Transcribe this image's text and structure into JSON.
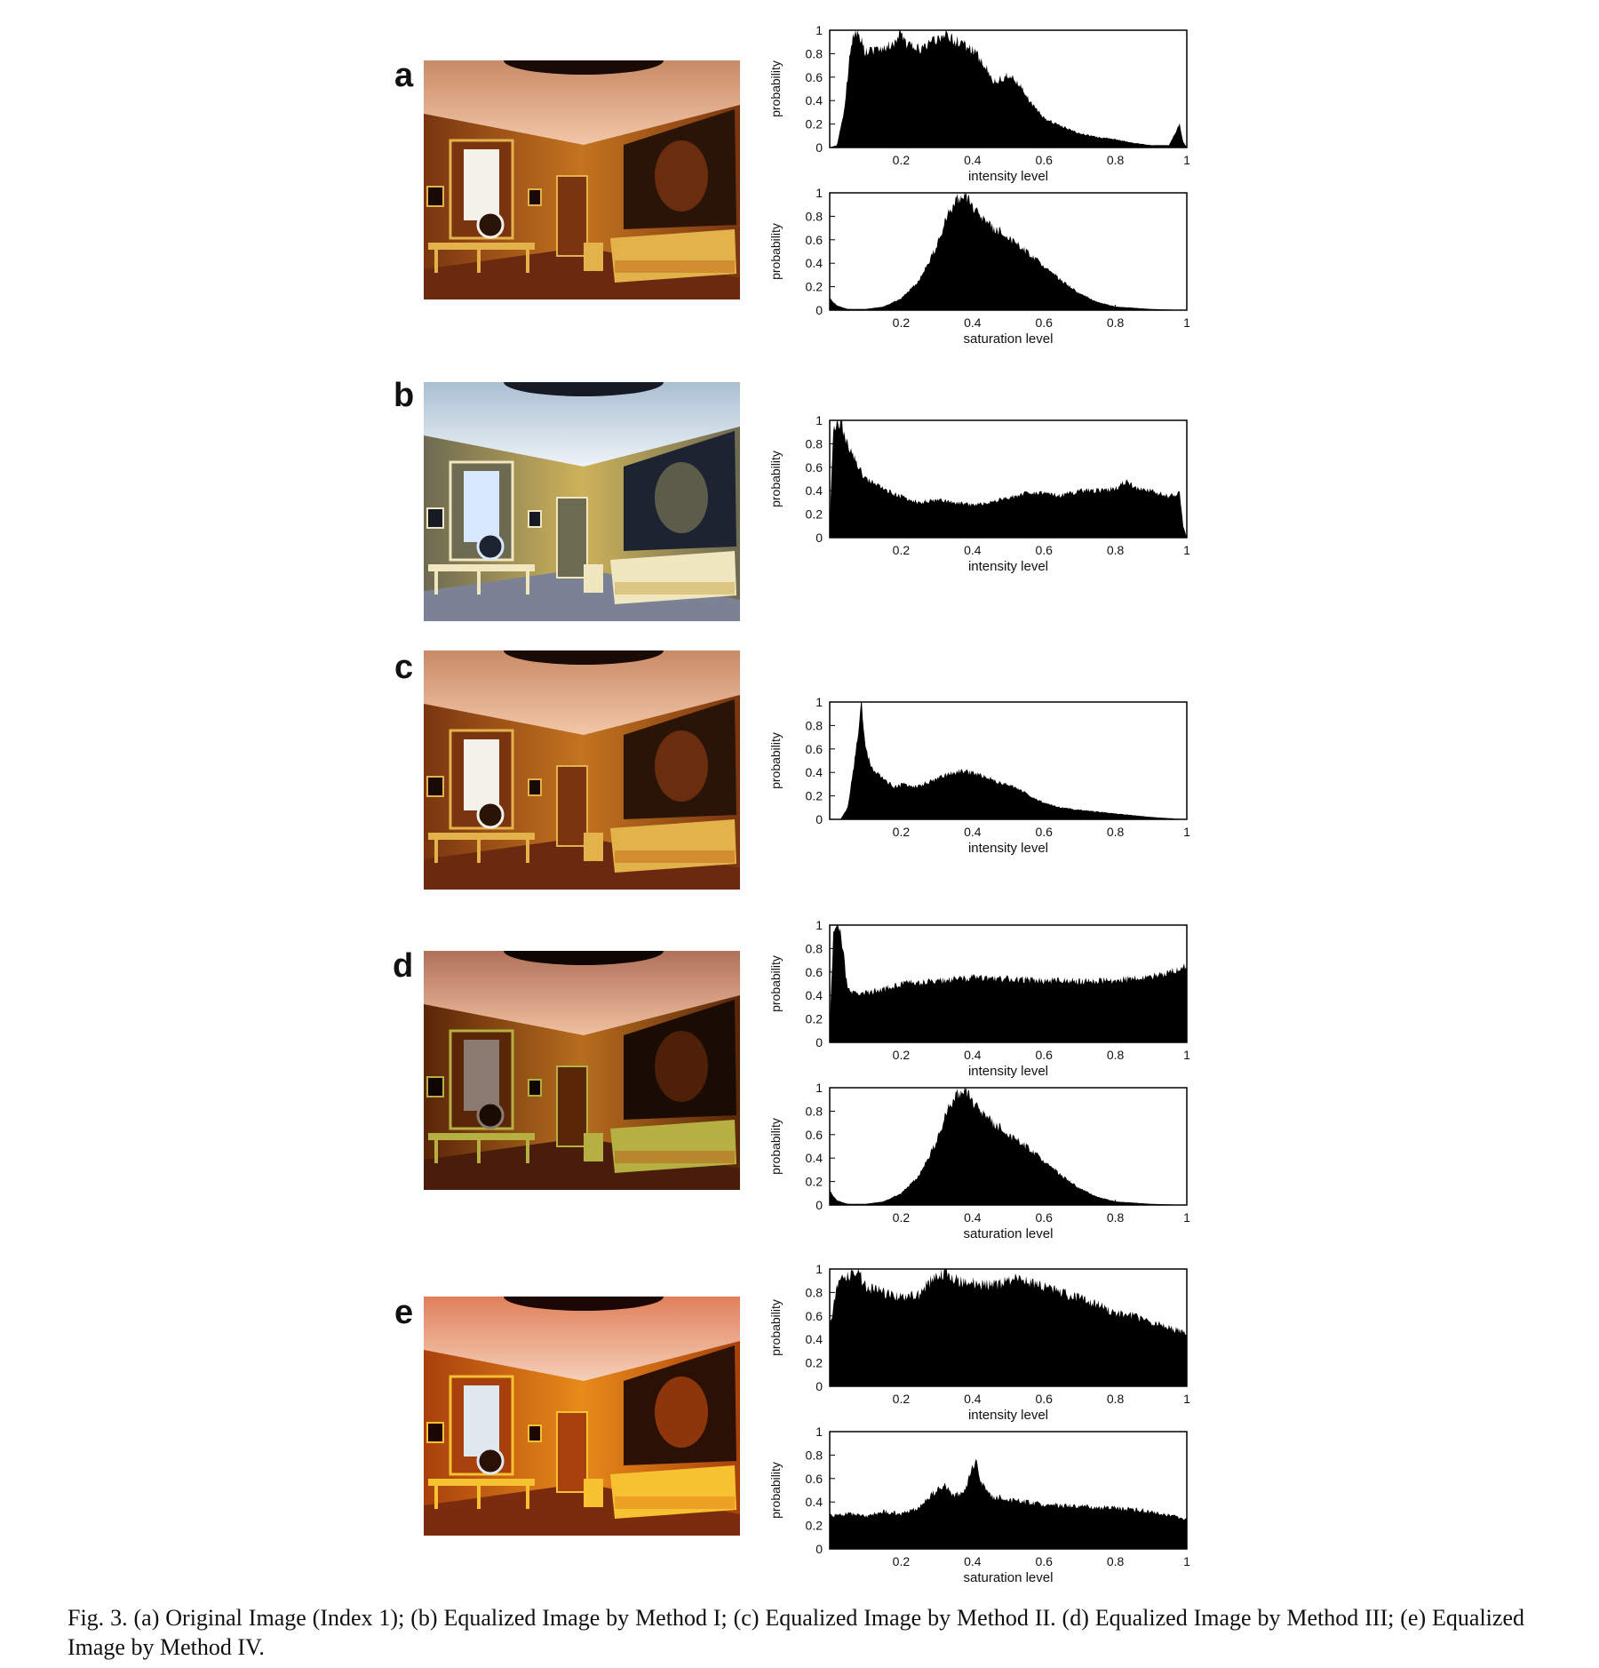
{
  "panels": [
    {
      "letter": "a",
      "photo_tint": "original"
    },
    {
      "letter": "b",
      "photo_tint": "cool"
    },
    {
      "letter": "c",
      "photo_tint": "original"
    },
    {
      "letter": "d",
      "photo_tint": "dark"
    },
    {
      "letter": "e",
      "photo_tint": "vivid"
    }
  ],
  "caption": "Fig. 3. (a) Original Image (Index 1); (b) Equalized Image by Method I; (c) Equalized Image by Method II. (d) Equalized Image by Method III; (e) Equalized Image by Method IV.",
  "chart_data": [
    {
      "panel": "a",
      "type": "area",
      "ylabel": "probability",
      "xlabel": "intensity level",
      "xlim": [
        0,
        1
      ],
      "ylim": [
        0,
        1
      ],
      "xticks": [
        "0.2",
        "0.4",
        "0.6",
        "0.8",
        "1"
      ],
      "yticks": [
        "0",
        "0.2",
        "0.4",
        "0.6",
        "0.8",
        "1"
      ],
      "x": [
        0,
        0.02,
        0.04,
        0.06,
        0.08,
        0.1,
        0.14,
        0.18,
        0.2,
        0.22,
        0.26,
        0.3,
        0.33,
        0.36,
        0.4,
        0.43,
        0.46,
        0.5,
        0.53,
        0.56,
        0.6,
        0.65,
        0.7,
        0.75,
        0.8,
        0.85,
        0.9,
        0.95,
        0.98,
        0.99,
        1
      ],
      "y": [
        0,
        0.02,
        0.3,
        0.9,
        1.0,
        0.82,
        0.85,
        0.88,
        0.97,
        0.86,
        0.85,
        0.92,
        0.96,
        0.9,
        0.84,
        0.72,
        0.56,
        0.62,
        0.55,
        0.4,
        0.25,
        0.18,
        0.12,
        0.09,
        0.07,
        0.04,
        0.02,
        0.02,
        0.2,
        0.05,
        0
      ]
    },
    {
      "panel": "a",
      "type": "area",
      "ylabel": "probability",
      "xlabel": "saturation level",
      "xlim": [
        0,
        1
      ],
      "ylim": [
        0,
        1
      ],
      "xticks": [
        "0.2",
        "0.4",
        "0.6",
        "0.8",
        "1"
      ],
      "yticks": [
        "0",
        "0.2",
        "0.4",
        "0.6",
        "0.8",
        "1"
      ],
      "x": [
        0,
        0.02,
        0.05,
        0.1,
        0.15,
        0.2,
        0.25,
        0.3,
        0.33,
        0.36,
        0.38,
        0.4,
        0.45,
        0.5,
        0.55,
        0.6,
        0.65,
        0.7,
        0.75,
        0.8,
        0.9,
        1
      ],
      "y": [
        0.1,
        0.04,
        0.01,
        0.01,
        0.03,
        0.1,
        0.25,
        0.55,
        0.82,
        0.95,
        0.98,
        0.88,
        0.72,
        0.62,
        0.5,
        0.38,
        0.25,
        0.14,
        0.07,
        0.03,
        0.01,
        0
      ]
    },
    {
      "panel": "b",
      "type": "area",
      "ylabel": "probability",
      "xlabel": "intensity level",
      "xlim": [
        0,
        1
      ],
      "ylim": [
        0,
        1
      ],
      "xticks": [
        "0.2",
        "0.4",
        "0.6",
        "0.8",
        "1"
      ],
      "yticks": [
        "0",
        "0.2",
        "0.4",
        "0.6",
        "0.8",
        "1"
      ],
      "x": [
        0,
        0.01,
        0.03,
        0.05,
        0.08,
        0.1,
        0.15,
        0.2,
        0.25,
        0.3,
        0.35,
        0.4,
        0.45,
        0.5,
        0.55,
        0.6,
        0.65,
        0.7,
        0.75,
        0.8,
        0.83,
        0.86,
        0.9,
        0.95,
        0.98,
        0.99,
        1
      ],
      "y": [
        0.1,
        0.95,
        0.98,
        0.8,
        0.6,
        0.5,
        0.42,
        0.35,
        0.3,
        0.32,
        0.3,
        0.28,
        0.3,
        0.34,
        0.38,
        0.38,
        0.36,
        0.4,
        0.4,
        0.42,
        0.48,
        0.42,
        0.4,
        0.35,
        0.38,
        0.1,
        0
      ]
    },
    {
      "panel": "c",
      "type": "area",
      "ylabel": "probability",
      "xlabel": "intensity level",
      "xlim": [
        0,
        1
      ],
      "ylim": [
        0,
        1
      ],
      "xticks": [
        "0.2",
        "0.4",
        "0.6",
        "0.8",
        "1"
      ],
      "yticks": [
        "0",
        "0.2",
        "0.4",
        "0.6",
        "0.8",
        "1"
      ],
      "x": [
        0,
        0.03,
        0.05,
        0.07,
        0.09,
        0.1,
        0.12,
        0.15,
        0.18,
        0.21,
        0.24,
        0.28,
        0.32,
        0.36,
        0.4,
        0.44,
        0.48,
        0.5,
        0.53,
        0.56,
        0.6,
        0.65,
        0.7,
        0.8,
        0.9,
        0.95,
        1
      ],
      "y": [
        0,
        0.0,
        0.1,
        0.5,
        1.0,
        0.6,
        0.42,
        0.35,
        0.28,
        0.3,
        0.28,
        0.32,
        0.37,
        0.41,
        0.4,
        0.36,
        0.3,
        0.3,
        0.26,
        0.2,
        0.14,
        0.1,
        0.08,
        0.05,
        0.02,
        0.01,
        0
      ]
    },
    {
      "panel": "d",
      "type": "area",
      "ylabel": "probability",
      "xlabel": "intensity level",
      "xlim": [
        0,
        1
      ],
      "ylim": [
        0,
        1
      ],
      "xticks": [
        "0.2",
        "0.4",
        "0.6",
        "0.8",
        "1"
      ],
      "yticks": [
        "0",
        "0.2",
        "0.4",
        "0.6",
        "0.8",
        "1"
      ],
      "x": [
        0,
        0.01,
        0.02,
        0.03,
        0.04,
        0.05,
        0.07,
        0.1,
        0.15,
        0.2,
        0.3,
        0.4,
        0.5,
        0.6,
        0.7,
        0.8,
        0.9,
        0.95,
        1
      ],
      "y": [
        0.15,
        0.9,
        1.0,
        0.95,
        0.72,
        0.45,
        0.42,
        0.42,
        0.45,
        0.5,
        0.52,
        0.55,
        0.54,
        0.53,
        0.52,
        0.53,
        0.56,
        0.6,
        0.65
      ]
    },
    {
      "panel": "d",
      "type": "area",
      "ylabel": "probability",
      "xlabel": "saturation level",
      "xlim": [
        0,
        1
      ],
      "ylim": [
        0,
        1
      ],
      "xticks": [
        "0.2",
        "0.4",
        "0.6",
        "0.8",
        "1"
      ],
      "yticks": [
        "0",
        "0.2",
        "0.4",
        "0.6",
        "0.8",
        "1"
      ],
      "x": [
        0,
        0.02,
        0.05,
        0.1,
        0.15,
        0.2,
        0.25,
        0.3,
        0.33,
        0.36,
        0.38,
        0.4,
        0.45,
        0.5,
        0.55,
        0.6,
        0.65,
        0.7,
        0.75,
        0.8,
        0.9,
        1
      ],
      "y": [
        0.12,
        0.04,
        0.01,
        0.01,
        0.03,
        0.1,
        0.25,
        0.55,
        0.82,
        0.95,
        0.98,
        0.88,
        0.72,
        0.6,
        0.5,
        0.38,
        0.25,
        0.14,
        0.07,
        0.03,
        0.01,
        0
      ]
    },
    {
      "panel": "e",
      "type": "area",
      "ylabel": "probability",
      "xlabel": "intensity level",
      "xlim": [
        0,
        1
      ],
      "ylim": [
        0,
        1
      ],
      "xticks": [
        "0.2",
        "0.4",
        "0.6",
        "0.8",
        "1"
      ],
      "yticks": [
        "0",
        "0.2",
        "0.4",
        "0.6",
        "0.8",
        "1"
      ],
      "x": [
        0,
        0.02,
        0.04,
        0.06,
        0.08,
        0.1,
        0.15,
        0.2,
        0.25,
        0.3,
        0.33,
        0.36,
        0.4,
        0.45,
        0.5,
        0.53,
        0.56,
        0.6,
        0.65,
        0.7,
        0.75,
        0.8,
        0.85,
        0.9,
        0.95,
        1
      ],
      "y": [
        0.5,
        0.85,
        0.92,
        0.95,
        0.97,
        0.85,
        0.8,
        0.76,
        0.78,
        0.96,
        0.95,
        0.9,
        0.88,
        0.86,
        0.9,
        0.95,
        0.88,
        0.85,
        0.8,
        0.75,
        0.7,
        0.62,
        0.6,
        0.55,
        0.5,
        0.45
      ]
    },
    {
      "panel": "e",
      "type": "area",
      "ylabel": "probability",
      "xlabel": "saturation level",
      "xlim": [
        0,
        1
      ],
      "ylim": [
        0,
        1
      ],
      "xticks": [
        "0.2",
        "0.4",
        "0.6",
        "0.8",
        "1"
      ],
      "yticks": [
        "0",
        "0.2",
        "0.4",
        "0.6",
        "0.8",
        "1"
      ],
      "x": [
        0,
        0.05,
        0.1,
        0.15,
        0.2,
        0.25,
        0.28,
        0.3,
        0.32,
        0.35,
        0.38,
        0.4,
        0.41,
        0.42,
        0.45,
        0.5,
        0.55,
        0.6,
        0.7,
        0.8,
        0.9,
        1
      ],
      "y": [
        0.28,
        0.3,
        0.28,
        0.32,
        0.3,
        0.35,
        0.45,
        0.5,
        0.55,
        0.45,
        0.5,
        0.7,
        0.75,
        0.6,
        0.45,
        0.42,
        0.4,
        0.38,
        0.36,
        0.35,
        0.32,
        0.25
      ]
    }
  ]
}
